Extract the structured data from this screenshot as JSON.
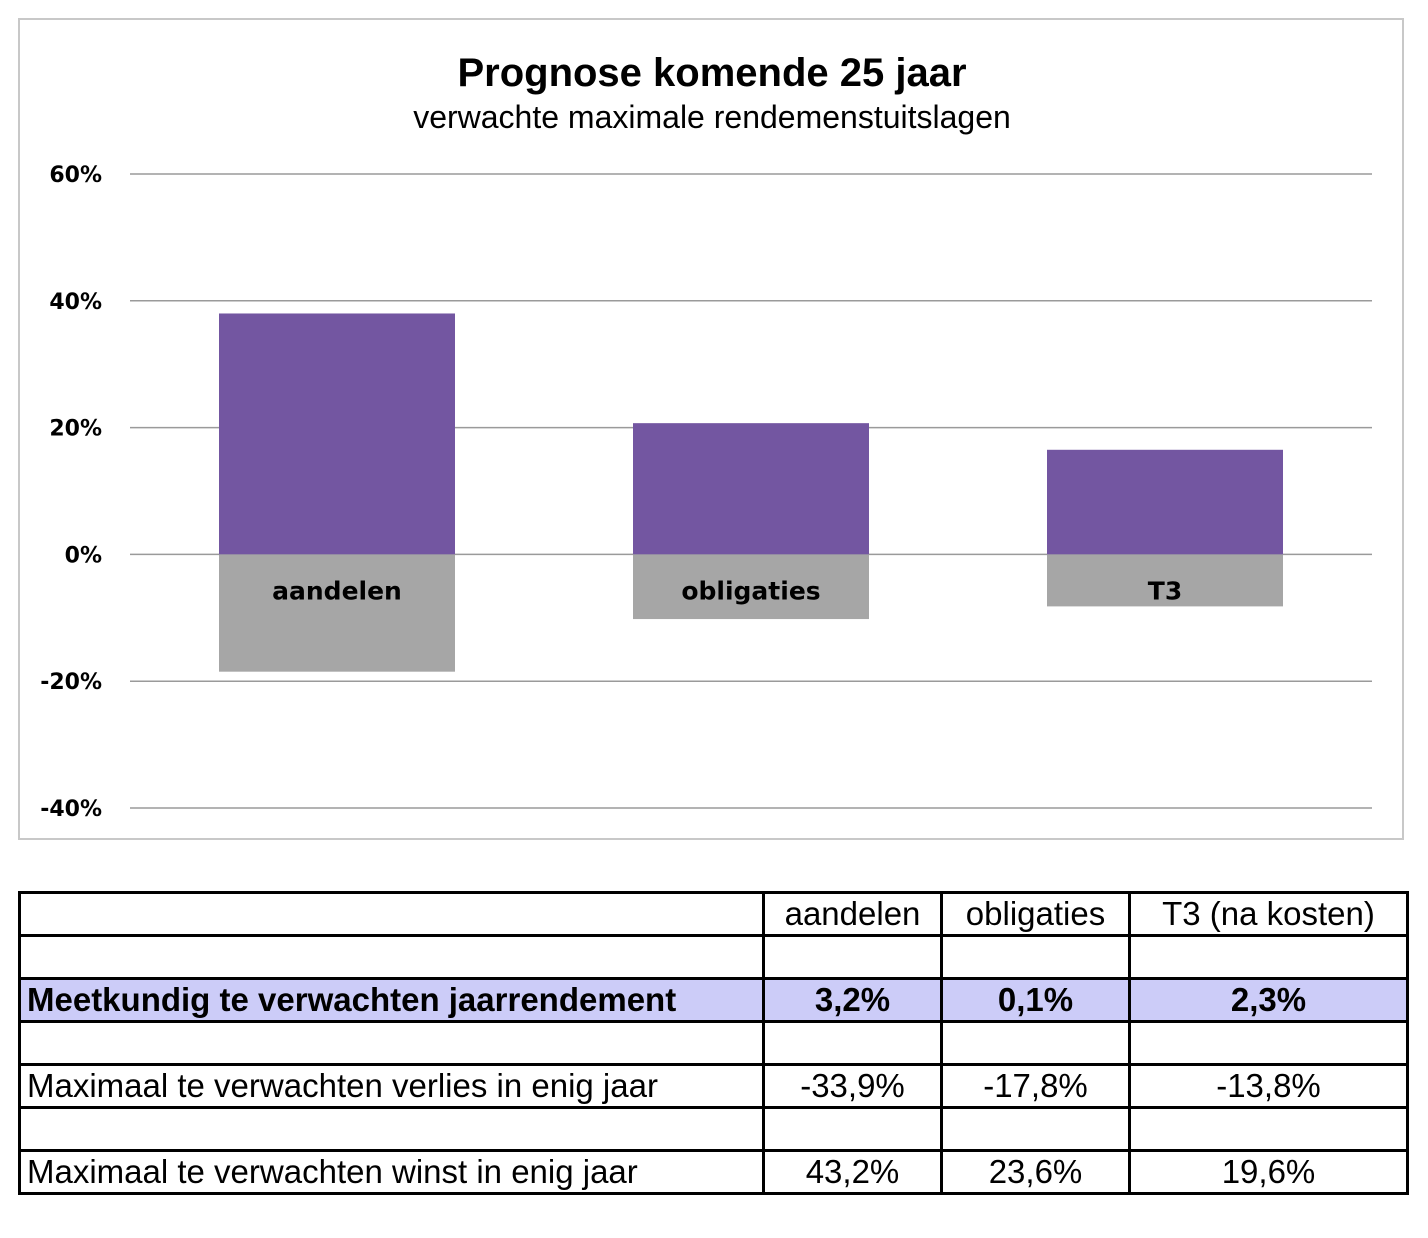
{
  "chart_data": {
    "type": "bar",
    "title": "Prognose komende 25 jaar",
    "subtitle": "verwachte maximale rendemenstuitslagen",
    "categories": [
      "aandelen",
      "obligaties",
      "T3"
    ],
    "series": [
      {
        "values": [
          38,
          20.7,
          16.5
        ]
      },
      {
        "values": [
          -18.5,
          -10.2,
          -8.2
        ]
      }
    ],
    "colors": [
      "#7356a1",
      "#a6a6a6"
    ],
    "ylim": [
      -40,
      60
    ],
    "yticks": [
      60,
      40,
      20,
      0,
      -20,
      -40
    ],
    "ytick_labels": [
      "60%",
      "40%",
      "20%",
      "0%",
      "-20%",
      "-40%"
    ],
    "grid": true,
    "stacked": true
  },
  "table": {
    "header": [
      "",
      "aandelen",
      "obligaties",
      "T3 (na kosten)"
    ],
    "rows": [
      {
        "cells": [
          "",
          "",
          "",
          ""
        ]
      },
      {
        "cells": [
          "Meetkundig te verwachten jaarrendement",
          "3,2%",
          "0,1%",
          "2,3%"
        ],
        "highlight": true
      },
      {
        "cells": [
          "",
          "",
          "",
          ""
        ]
      },
      {
        "cells": [
          "Maximaal te verwachten verlies in enig jaar",
          "-33,9%",
          "-17,8%",
          "-13,8%"
        ]
      },
      {
        "cells": [
          "",
          "",
          "",
          ""
        ]
      },
      {
        "cells": [
          "Maximaal te verwachten winst in enig jaar",
          "43,2%",
          "23,6%",
          "19,6%"
        ]
      }
    ],
    "highlight_color": "#ccccf8"
  }
}
